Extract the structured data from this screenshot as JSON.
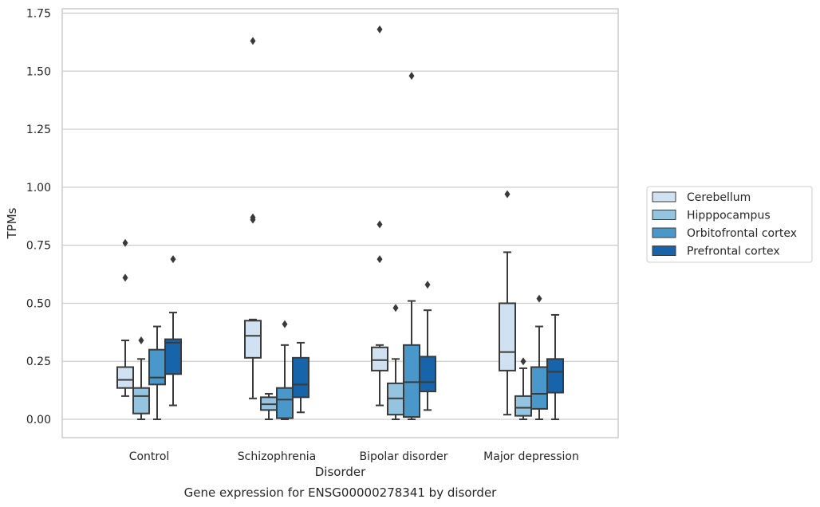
{
  "chart_data": {
    "type": "box",
    "title": "Gene expression for ENSG00000278341 by disorder",
    "xlabel": "Disorder",
    "ylabel": "TPMs",
    "ylim": [
      -0.08,
      1.76
    ],
    "yticks": [
      0.0,
      0.25,
      0.5,
      0.75,
      1.0,
      1.25,
      1.5,
      1.75
    ],
    "ytick_labels": [
      "0.00",
      "0.25",
      "0.50",
      "0.75",
      "1.00",
      "1.25",
      "1.50",
      "1.75"
    ],
    "categories": [
      "Control",
      "Schizophrenia",
      "Bipolar disorder",
      "Major depression"
    ],
    "grid": "horizontal",
    "legend_position": "right",
    "series": [
      {
        "name": "Cerebellum",
        "color": "#d0e1f2",
        "boxes": [
          {
            "whislo": 0.1,
            "q1": 0.135,
            "med": 0.17,
            "q3": 0.225,
            "whishi": 0.34,
            "fliers": [
              0.61,
              0.76
            ]
          },
          {
            "whislo": 0.09,
            "q1": 0.265,
            "med": 0.36,
            "q3": 0.425,
            "whishi": 0.43,
            "fliers": [
              0.86,
              0.87,
              1.63
            ]
          },
          {
            "whislo": 0.06,
            "q1": 0.21,
            "med": 0.255,
            "q3": 0.31,
            "whishi": 0.32,
            "fliers": [
              0.69,
              0.84,
              1.68
            ]
          },
          {
            "whislo": 0.02,
            "q1": 0.21,
            "med": 0.29,
            "q3": 0.5,
            "whishi": 0.72,
            "fliers": [
              0.97
            ]
          }
        ]
      },
      {
        "name": "Hipppocampus",
        "color": "#94c4df",
        "boxes": [
          {
            "whislo": 0.0,
            "q1": 0.025,
            "med": 0.1,
            "q3": 0.135,
            "whishi": 0.26,
            "fliers": [
              0.34
            ]
          },
          {
            "whislo": 0.0,
            "q1": 0.04,
            "med": 0.065,
            "q3": 0.095,
            "whishi": 0.11,
            "fliers": []
          },
          {
            "whislo": 0.0,
            "q1": 0.02,
            "med": 0.09,
            "q3": 0.155,
            "whishi": 0.26,
            "fliers": [
              0.48
            ]
          },
          {
            "whislo": 0.0,
            "q1": 0.015,
            "med": 0.05,
            "q3": 0.1,
            "whishi": 0.22,
            "fliers": [
              0.25
            ]
          }
        ]
      },
      {
        "name": "Orbitofrontal cortex",
        "color": "#4a98c9",
        "boxes": [
          {
            "whislo": 0.0,
            "q1": 0.15,
            "med": 0.18,
            "q3": 0.3,
            "whishi": 0.4,
            "fliers": []
          },
          {
            "whislo": 0.0,
            "q1": 0.005,
            "med": 0.085,
            "q3": 0.135,
            "whishi": 0.32,
            "fliers": [
              0.41
            ]
          },
          {
            "whislo": 0.0,
            "q1": 0.01,
            "med": 0.16,
            "q3": 0.32,
            "whishi": 0.51,
            "fliers": [
              1.48
            ]
          },
          {
            "whislo": 0.0,
            "q1": 0.045,
            "med": 0.11,
            "q3": 0.225,
            "whishi": 0.4,
            "fliers": [
              0.52
            ]
          }
        ]
      },
      {
        "name": "Prefrontal cortex",
        "color": "#1764ab",
        "boxes": [
          {
            "whislo": 0.06,
            "q1": 0.195,
            "med": 0.33,
            "q3": 0.345,
            "whishi": 0.46,
            "fliers": [
              0.69
            ]
          },
          {
            "whislo": 0.03,
            "q1": 0.095,
            "med": 0.15,
            "q3": 0.265,
            "whishi": 0.33,
            "fliers": []
          },
          {
            "whislo": 0.04,
            "q1": 0.12,
            "med": 0.16,
            "q3": 0.27,
            "whishi": 0.47,
            "fliers": [
              0.58
            ]
          },
          {
            "whislo": 0.0,
            "q1": 0.115,
            "med": 0.205,
            "q3": 0.26,
            "whishi": 0.45,
            "fliers": []
          }
        ]
      }
    ]
  }
}
